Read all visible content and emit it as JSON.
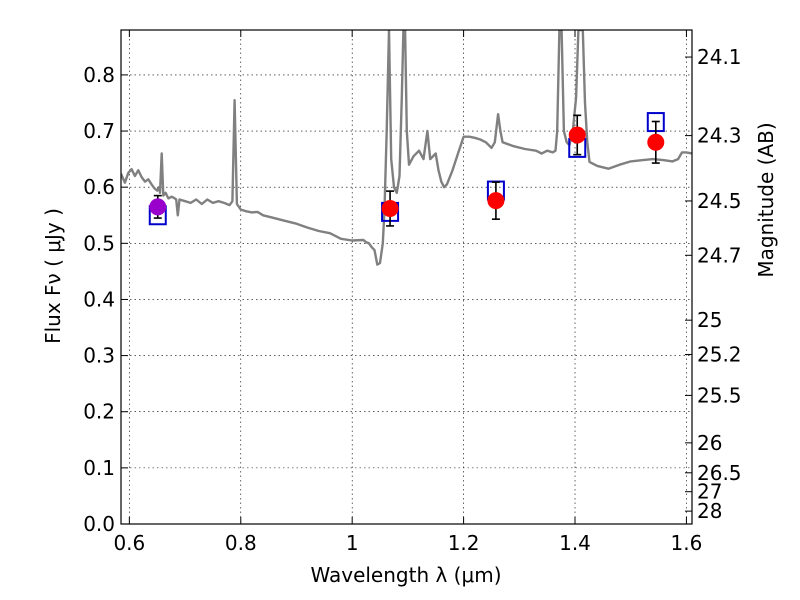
{
  "chart_data": {
    "type": "scatter",
    "title": "",
    "xlabel": "Wavelength  λ (μm)",
    "ylabel": "Flux  Fν  ( μJy )",
    "y2label": "Magnitude (AB)",
    "xlim": [
      0.585,
      1.61
    ],
    "ylim": [
      0.0,
      0.88
    ],
    "grid": true,
    "x_ticks": [
      {
        "value": 0.6,
        "label": "0.6"
      },
      {
        "value": 0.8,
        "label": "0.8"
      },
      {
        "value": 1.0,
        "label": "1"
      },
      {
        "value": 1.2,
        "label": "1.2"
      },
      {
        "value": 1.4,
        "label": "1.4"
      },
      {
        "value": 1.6,
        "label": "1.6"
      }
    ],
    "y_ticks": [
      {
        "value": 0.0,
        "label": "0.0"
      },
      {
        "value": 0.1,
        "label": "0.1"
      },
      {
        "value": 0.2,
        "label": "0.2"
      },
      {
        "value": 0.3,
        "label": "0.3"
      },
      {
        "value": 0.4,
        "label": "0.4"
      },
      {
        "value": 0.5,
        "label": "0.5"
      },
      {
        "value": 0.6,
        "label": "0.6"
      },
      {
        "value": 0.7,
        "label": "0.7"
      },
      {
        "value": 0.8,
        "label": "0.8"
      }
    ],
    "mag_ticks": [
      {
        "value": 24.1,
        "label": "24.1"
      },
      {
        "value": 24.3,
        "label": "24.3"
      },
      {
        "value": 24.5,
        "label": "24.5"
      },
      {
        "value": 24.7,
        "label": "24.7"
      },
      {
        "value": 25.0,
        "label": "25"
      },
      {
        "value": 25.2,
        "label": "25.2"
      },
      {
        "value": 25.5,
        "label": "25.5"
      },
      {
        "value": 26.0,
        "label": "26"
      },
      {
        "value": 26.5,
        "label": "26.5"
      },
      {
        "value": 27.0,
        "label": "27"
      },
      {
        "value": 28.0,
        "label": "28"
      }
    ],
    "model_spectrum": {
      "color": "#808080",
      "points": [
        [
          0.585,
          0.624
        ],
        [
          0.592,
          0.608
        ],
        [
          0.598,
          0.625
        ],
        [
          0.604,
          0.632
        ],
        [
          0.61,
          0.62
        ],
        [
          0.616,
          0.63
        ],
        [
          0.622,
          0.618
        ],
        [
          0.628,
          0.61
        ],
        [
          0.634,
          0.614
        ],
        [
          0.64,
          0.605
        ],
        [
          0.645,
          0.598
        ],
        [
          0.65,
          0.594
        ],
        [
          0.653,
          0.6
        ],
        [
          0.655,
          0.59
        ],
        [
          0.658,
          0.66
        ],
        [
          0.661,
          0.585
        ],
        [
          0.665,
          0.59
        ],
        [
          0.67,
          0.58
        ],
        [
          0.676,
          0.583
        ],
        [
          0.68,
          0.581
        ],
        [
          0.684,
          0.578
        ],
        [
          0.687,
          0.55
        ],
        [
          0.69,
          0.578
        ],
        [
          0.7,
          0.575
        ],
        [
          0.71,
          0.572
        ],
        [
          0.72,
          0.578
        ],
        [
          0.73,
          0.57
        ],
        [
          0.74,
          0.578
        ],
        [
          0.75,
          0.572
        ],
        [
          0.76,
          0.575
        ],
        [
          0.77,
          0.572
        ],
        [
          0.78,
          0.568
        ],
        [
          0.785,
          0.575
        ],
        [
          0.789,
          0.755
        ],
        [
          0.793,
          0.57
        ],
        [
          0.8,
          0.56
        ],
        [
          0.81,
          0.557
        ],
        [
          0.82,
          0.555
        ],
        [
          0.83,
          0.556
        ],
        [
          0.84,
          0.55
        ],
        [
          0.86,
          0.545
        ],
        [
          0.88,
          0.54
        ],
        [
          0.9,
          0.535
        ],
        [
          0.92,
          0.528
        ],
        [
          0.94,
          0.522
        ],
        [
          0.96,
          0.518
        ],
        [
          0.98,
          0.508
        ],
        [
          1.0,
          0.505
        ],
        [
          1.02,
          0.506
        ],
        [
          1.025,
          0.502
        ],
        [
          1.03,
          0.5
        ],
        [
          1.035,
          0.493
        ],
        [
          1.04,
          0.488
        ],
        [
          1.045,
          0.462
        ],
        [
          1.05,
          0.465
        ],
        [
          1.055,
          0.5
        ],
        [
          1.058,
          0.56
        ],
        [
          1.062,
          0.7
        ],
        [
          1.066,
          0.88
        ],
        [
          1.07,
          0.65
        ],
        [
          1.075,
          0.6
        ],
        [
          1.08,
          0.59
        ],
        [
          1.085,
          0.62
        ],
        [
          1.089,
          0.76
        ],
        [
          1.092,
          0.88
        ],
        [
          1.095,
          0.88
        ],
        [
          1.098,
          0.7
        ],
        [
          1.102,
          0.64
        ],
        [
          1.11,
          0.655
        ],
        [
          1.12,
          0.665
        ],
        [
          1.128,
          0.65
        ],
        [
          1.135,
          0.7
        ],
        [
          1.14,
          0.65
        ],
        [
          1.15,
          0.66
        ],
        [
          1.155,
          0.63
        ],
        [
          1.16,
          0.61
        ],
        [
          1.165,
          0.6
        ],
        [
          1.17,
          0.605
        ],
        [
          1.18,
          0.63
        ],
        [
          1.19,
          0.66
        ],
        [
          1.2,
          0.69
        ],
        [
          1.21,
          0.69
        ],
        [
          1.22,
          0.688
        ],
        [
          1.23,
          0.685
        ],
        [
          1.24,
          0.68
        ],
        [
          1.25,
          0.67
        ],
        [
          1.256,
          0.68
        ],
        [
          1.262,
          0.73
        ],
        [
          1.266,
          0.7
        ],
        [
          1.27,
          0.68
        ],
        [
          1.29,
          0.673
        ],
        [
          1.31,
          0.668
        ],
        [
          1.33,
          0.665
        ],
        [
          1.34,
          0.66
        ],
        [
          1.35,
          0.665
        ],
        [
          1.36,
          0.662
        ],
        [
          1.365,
          0.665
        ],
        [
          1.368,
          0.7
        ],
        [
          1.372,
          0.88
        ],
        [
          1.376,
          0.88
        ],
        [
          1.38,
          0.7
        ],
        [
          1.385,
          0.68
        ],
        [
          1.39,
          0.675
        ],
        [
          1.396,
          0.7
        ],
        [
          1.402,
          0.76
        ],
        [
          1.406,
          0.88
        ],
        [
          1.414,
          0.88
        ],
        [
          1.418,
          0.75
        ],
        [
          1.422,
          0.68
        ],
        [
          1.426,
          0.645
        ],
        [
          1.44,
          0.638
        ],
        [
          1.46,
          0.633
        ],
        [
          1.48,
          0.64
        ],
        [
          1.5,
          0.646
        ],
        [
          1.52,
          0.648
        ],
        [
          1.54,
          0.65
        ],
        [
          1.56,
          0.648
        ],
        [
          1.575,
          0.646
        ],
        [
          1.585,
          0.65
        ],
        [
          1.592,
          0.662
        ],
        [
          1.6,
          0.662
        ],
        [
          1.61,
          0.66
        ]
      ]
    },
    "model_photometry": {
      "marker": "open-square",
      "color": "#0000cc",
      "points": [
        {
          "x": 0.651,
          "y": 0.55
        },
        {
          "x": 1.068,
          "y": 0.556
        },
        {
          "x": 1.258,
          "y": 0.594
        },
        {
          "x": 1.404,
          "y": 0.67
        },
        {
          "x": 1.545,
          "y": 0.716
        }
      ]
    },
    "observed_photometry": {
      "marker": "filled-circle",
      "color": "#ff0000",
      "points": [
        {
          "x": 0.651,
          "y": 0.565,
          "yerr": 0.02,
          "color": "#9900cc"
        },
        {
          "x": 1.068,
          "y": 0.562,
          "yerr": 0.031
        },
        {
          "x": 1.258,
          "y": 0.576,
          "yerr": 0.033
        },
        {
          "x": 1.404,
          "y": 0.693,
          "yerr": 0.035
        },
        {
          "x": 1.545,
          "y": 0.68,
          "yerr": 0.037
        }
      ]
    }
  }
}
